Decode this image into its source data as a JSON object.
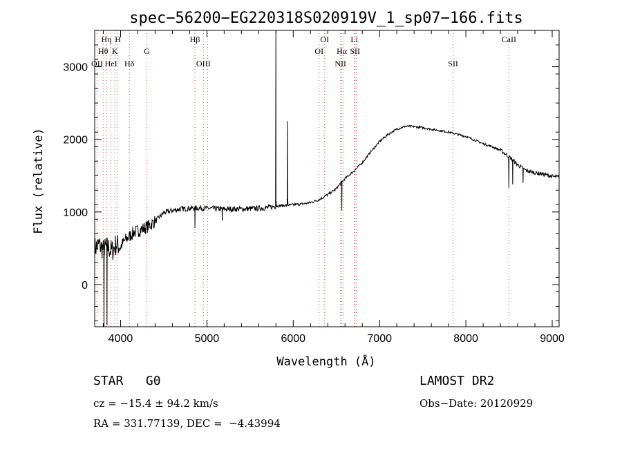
{
  "chart_data": {
    "type": "line",
    "title": "spec−56200−EG220318S020919V_1_sp07−166.fits",
    "xlabel": "Wavelength (Å)",
    "ylabel": "Flux (relative)",
    "xlim": [
      3700,
      9080
    ],
    "ylim": [
      -580,
      3500
    ],
    "x_ticks": [
      4000,
      5000,
      6000,
      7000,
      8000,
      9000
    ],
    "x_tick_labels": [
      "4000",
      "5000",
      "6000",
      "7000",
      "8000",
      "9000"
    ],
    "y_ticks": [
      0,
      1000,
      2000,
      3000
    ],
    "y_tick_labels": [
      "0",
      "1000",
      "2000",
      "3000"
    ],
    "grid": false,
    "series": [
      {
        "x": [
          3700,
          3750,
          3800,
          3850,
          3900,
          3950,
          4000,
          4050,
          4100,
          4150,
          4200,
          4300,
          4400,
          4500,
          4600,
          4700,
          4800,
          4900,
          5000,
          5100,
          5200,
          5300,
          5400,
          5500,
          5600,
          5700,
          5800,
          5900,
          6000,
          6100,
          6200,
          6300,
          6400,
          6500,
          6550,
          6600,
          6700,
          6800,
          6900,
          7000,
          7100,
          7200,
          7300,
          7400,
          7500,
          7600,
          7700,
          7800,
          7900,
          8000,
          8100,
          8200,
          8300,
          8400,
          8500,
          8600,
          8700,
          8800,
          8900,
          9000,
          9050
        ],
        "y": [
          500,
          550,
          480,
          520,
          460,
          560,
          520,
          610,
          660,
          720,
          740,
          790,
          870,
          990,
          1020,
          1040,
          1050,
          1055,
          1050,
          1045,
          1040,
          1040,
          1040,
          1045,
          1050,
          1060,
          1080,
          1090,
          1100,
          1110,
          1130,
          1170,
          1240,
          1320,
          1400,
          1460,
          1560,
          1680,
          1830,
          1970,
          2070,
          2140,
          2180,
          2175,
          2160,
          2140,
          2120,
          2100,
          2070,
          2040,
          1990,
          1940,
          1900,
          1850,
          1760,
          1650,
          1570,
          1540,
          1520,
          1490,
          1480
        ]
      }
    ],
    "features": [
      {
        "x": 3645,
        "y": 0,
        "x2": 0,
        "y2": 0,
        "spike": 0
      }
    ],
    "spikes": [
      {
        "x": 5799,
        "y": 3500
      },
      {
        "x": 5802,
        "y": 1150
      },
      {
        "x": 5932,
        "y": 2250
      },
      {
        "x": 5937,
        "y": 1180
      }
    ],
    "dips": [
      {
        "x": 3808,
        "y": -580
      },
      {
        "x": 3843,
        "y": -560
      },
      {
        "x": 4861,
        "y": 780
      },
      {
        "x": 5178,
        "y": 880
      },
      {
        "x": 6563,
        "y": 1020
      },
      {
        "x": 8498,
        "y": 1330
      },
      {
        "x": 8542,
        "y": 1380
      },
      {
        "x": 8662,
        "y": 1400
      }
    ],
    "spectral_lines": [
      {
        "x": 3727,
        "label": "OII",
        "row": 2
      },
      {
        "x": 3798,
        "label": "Hθ",
        "row": 1
      },
      {
        "x": 3835,
        "label": "Hη",
        "row": 0
      },
      {
        "x": 3889,
        "label": "HeI",
        "row": 2
      },
      {
        "x": 3934,
        "label": "K",
        "row": 1
      },
      {
        "x": 3969,
        "label": "H",
        "row": 0
      },
      {
        "x": 4102,
        "label": "Hδ",
        "row": 2
      },
      {
        "x": 4304,
        "label": "G",
        "row": 1
      },
      {
        "x": 4861,
        "label": "Hβ",
        "row": 0
      },
      {
        "x": 4959,
        "label": "OIII",
        "row": 2
      },
      {
        "x": 5007,
        "label": "",
        "row": 2
      },
      {
        "x": 6300,
        "label": "OI",
        "row": 1
      },
      {
        "x": 6364,
        "label": "OI",
        "row": 0
      },
      {
        "x": 6548,
        "label": "NII",
        "row": 2
      },
      {
        "x": 6563,
        "label": "Hα",
        "row": 1
      },
      {
        "x": 6583,
        "label": "",
        "row": 2
      },
      {
        "x": 6708,
        "label": "Li",
        "row": 0
      },
      {
        "x": 6716,
        "label": "SII",
        "row": 1
      },
      {
        "x": 6731,
        "label": "",
        "row": 1
      },
      {
        "x": 7852,
        "label": "SII",
        "row": 2
      },
      {
        "x": 8498,
        "label": "CaII",
        "row": 0
      }
    ]
  },
  "info": {
    "class_label": "STAR   G0",
    "survey": "LAMOST DR2",
    "redshift": "cz = −15.4 ± 94.2 km/s",
    "obs_date": "Obs−Date: 20120929",
    "coords": "RA = 331.77139, DEC =  −4.43994"
  },
  "colors": {
    "line_marker": "#e05050",
    "spectrum": "#000000"
  }
}
